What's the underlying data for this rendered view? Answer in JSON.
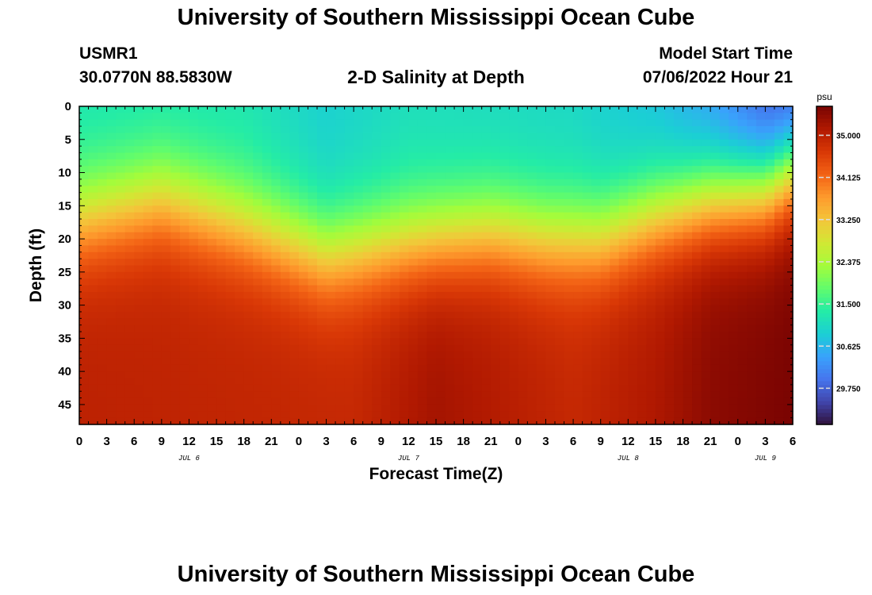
{
  "header": {
    "title_top": "University of Southern Mississippi Ocean Cube",
    "station_id": "USMR1",
    "coordinates": "30.0770N  88.5830W",
    "plot_title": "2-D Salinity at Depth",
    "model_label": "Model Start Time",
    "model_time": "07/06/2022 Hour 21",
    "title_bottom": "University of Southern Mississippi Ocean Cube"
  },
  "chart_data": {
    "type": "heatmap",
    "title": "2-D Salinity at Depth",
    "xlabel": "Forecast Time(Z)",
    "ylabel": "Depth (ft)",
    "x_tick_labels": [
      "0",
      "3",
      "6",
      "9",
      "12",
      "15",
      "18",
      "21",
      "0",
      "3",
      "6",
      "9",
      "12",
      "15",
      "18",
      "21",
      "0",
      "3",
      "6",
      "9",
      "12",
      "15",
      "18",
      "21",
      "0",
      "3",
      "6"
    ],
    "x_hours_from_start": [
      0,
      3,
      6,
      9,
      12,
      15,
      18,
      21,
      24,
      27,
      30,
      33,
      36,
      39,
      42,
      45,
      48,
      51,
      54,
      57,
      60,
      63,
      66,
      69,
      72,
      75,
      78
    ],
    "date_labels": [
      {
        "label": "JUL 6",
        "hour": 12
      },
      {
        "label": "JUL 7",
        "hour": 36
      },
      {
        "label": "JUL 8",
        "hour": 60
      },
      {
        "label": "JUL 9",
        "hour": 75
      }
    ],
    "ylim": [
      0,
      48
    ],
    "y_ticks": [
      0,
      5,
      10,
      15,
      20,
      25,
      30,
      35,
      40,
      45
    ],
    "xlim": [
      0,
      78
    ],
    "colorbar": {
      "unit": "psu",
      "range": [
        29.0,
        35.6
      ],
      "tick_labels": [
        "35.000",
        "34.125",
        "33.250",
        "32.375",
        "31.500",
        "30.625",
        "29.750"
      ],
      "tick_values": [
        35.0,
        34.125,
        33.25,
        32.375,
        31.5,
        30.625,
        29.75
      ]
    },
    "halocline_midpoint_depth_ft": {
      "hours": [
        0,
        9,
        18,
        27,
        36,
        45,
        51,
        57,
        63,
        69,
        75,
        78
      ],
      "depth": [
        17.5,
        14.5,
        18.5,
        23.0,
        21.0,
        19.5,
        20.5,
        20.5,
        17.0,
        14.5,
        13.0,
        10.0
      ]
    },
    "surface_salinity_psu": {
      "hours": [
        0,
        18,
        27,
        36,
        54,
        63,
        69,
        75,
        78
      ],
      "value": [
        31.2,
        31.2,
        30.9,
        31.1,
        31.0,
        30.7,
        30.3,
        29.6,
        29.4
      ]
    },
    "bottom_salinity_psu": {
      "hours": [
        0,
        30,
        39,
        54,
        63,
        69,
        75,
        78
      ],
      "value": [
        35.0,
        34.9,
        35.25,
        34.9,
        35.15,
        35.45,
        35.55,
        35.6
      ]
    },
    "colormap": [
      "#30123b",
      "#4145ab",
      "#4675ed",
      "#39a2fc",
      "#1bcfd4",
      "#24eca6",
      "#61fc6c",
      "#a4fc3b",
      "#d1e834",
      "#f3c63a",
      "#fe9b2d",
      "#f36315",
      "#d93806",
      "#b11901",
      "#7a0402"
    ]
  }
}
